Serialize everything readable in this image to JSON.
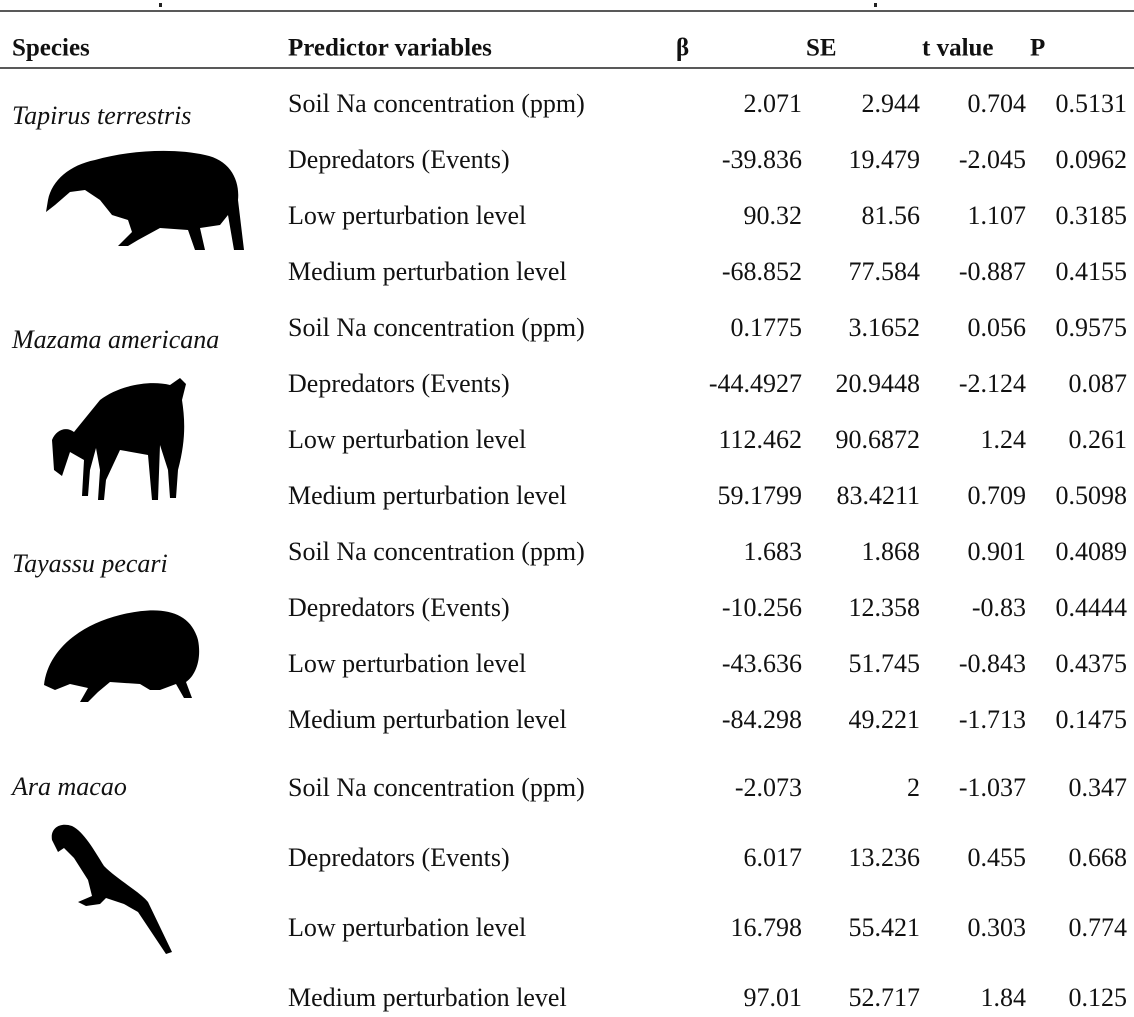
{
  "header": {
    "columns": [
      "Species",
      "Predictor variables",
      "β",
      "SE",
      "t value",
      "P"
    ]
  },
  "groups": [
    {
      "species": "Tapirus terrestris",
      "rows": [
        [
          "Soil Na concentration (ppm)",
          "2.071",
          "2.944",
          "0.704",
          "0.5131"
        ],
        [
          "Depredators (Events)",
          "-39.836",
          "19.479",
          "-2.045",
          "0.0962"
        ],
        [
          "Low perturbation level",
          "90.32",
          "81.56",
          "1.107",
          "0.3185"
        ],
        [
          "Medium perturbation level",
          "-68.852",
          "77.584",
          "-0.887",
          "0.4155"
        ]
      ]
    },
    {
      "species": "Mazama americana",
      "rows": [
        [
          "Soil Na concentration (ppm)",
          "0.1775",
          "3.1652",
          "0.056",
          "0.9575"
        ],
        [
          "Depredators (Events)",
          "-44.4927",
          "20.9448",
          "-2.124",
          "0.087"
        ],
        [
          "Low perturbation level",
          "112.462",
          "90.6872",
          "1.24",
          "0.261"
        ],
        [
          "Medium perturbation level",
          "59.1799",
          "83.4211",
          "0.709",
          "0.5098"
        ]
      ]
    },
    {
      "species": "Tayassu pecari",
      "rows": [
        [
          "Soil Na concentration (ppm)",
          "1.683",
          "1.868",
          "0.901",
          "0.4089"
        ],
        [
          "Depredators (Events)",
          "-10.256",
          "12.358",
          "-0.83",
          "0.4444"
        ],
        [
          "Low perturbation level",
          "-43.636",
          "51.745",
          "-0.843",
          "0.4375"
        ],
        [
          "Medium perturbation level",
          "-84.298",
          "49.221",
          "-1.713",
          "0.1475"
        ]
      ]
    },
    {
      "species": "Ara macao",
      "rows": [
        [
          "Soil Na concentration (ppm)",
          "-2.073",
          "2",
          "-1.037",
          "0.347"
        ],
        [
          "Depredators (Events)",
          "6.017",
          "13.236",
          "0.455",
          "0.668"
        ],
        [
          "Low perturbation level",
          "16.798",
          "55.421",
          "0.303",
          "0.774"
        ],
        [
          "Medium perturbation level",
          "97.01",
          "52.717",
          "1.84",
          "0.125"
        ]
      ]
    }
  ]
}
